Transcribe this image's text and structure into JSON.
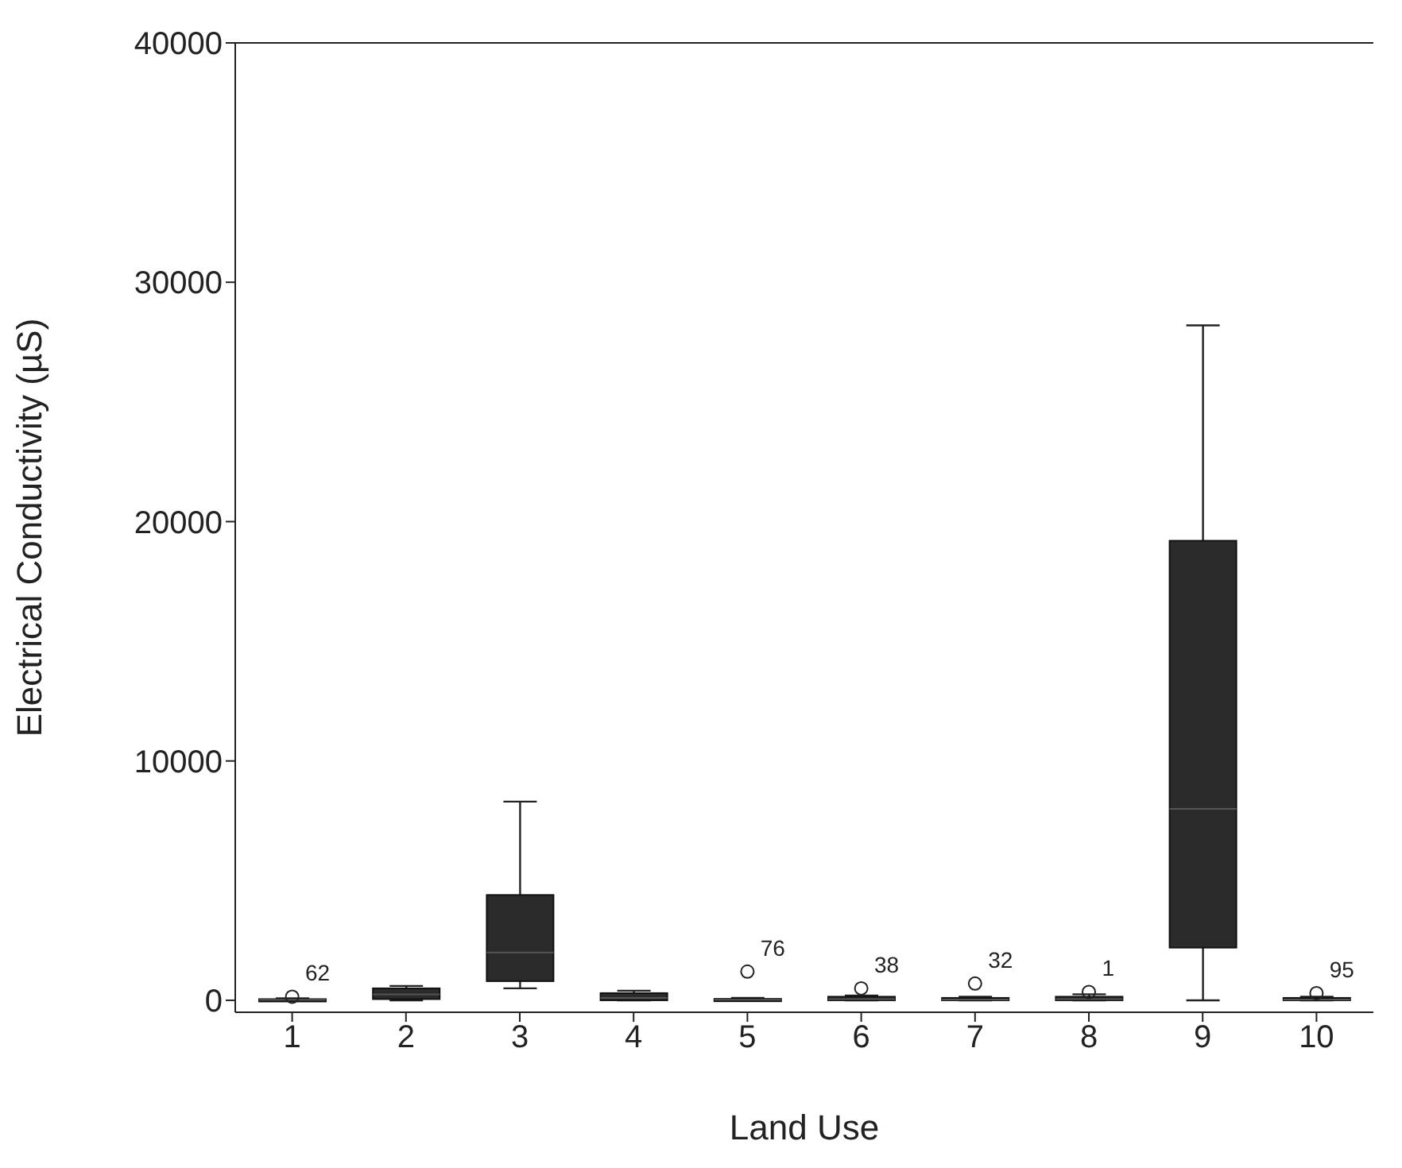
{
  "chart_data": {
    "type": "box",
    "xlabel": "Land Use",
    "ylabel": "Electrical Conductivity (µS)",
    "categories": [
      "1",
      "2",
      "3",
      "4",
      "5",
      "6",
      "7",
      "8",
      "9",
      "10"
    ],
    "ylim": [
      -500,
      40000
    ],
    "yticks": [
      0,
      10000,
      20000,
      30000,
      40000
    ],
    "color": "#2b2b2b",
    "boxes": [
      {
        "low": 0,
        "q1": 0,
        "median": 20,
        "q3": 50,
        "high": 80
      },
      {
        "low": 0,
        "q1": 50,
        "median": 250,
        "q3": 500,
        "high": 600
      },
      {
        "low": 500,
        "q1": 800,
        "median": 2000,
        "q3": 4400,
        "high": 8300
      },
      {
        "low": 0,
        "q1": 0,
        "median": 100,
        "q3": 300,
        "high": 400
      },
      {
        "low": 0,
        "q1": 0,
        "median": 20,
        "q3": 60,
        "high": 100
      },
      {
        "low": 0,
        "q1": 0,
        "median": 50,
        "q3": 150,
        "high": 200
      },
      {
        "low": 0,
        "q1": 0,
        "median": 30,
        "q3": 100,
        "high": 150
      },
      {
        "low": 0,
        "q1": 0,
        "median": 50,
        "q3": 150,
        "high": 250
      },
      {
        "low": 0,
        "q1": 2200,
        "median": 8000,
        "q3": 19200,
        "high": 28200
      },
      {
        "low": 0,
        "q1": 0,
        "median": 30,
        "q3": 100,
        "high": 150
      }
    ],
    "series": [
      {
        "type": "scatter",
        "x": [
          "1",
          "5",
          "6",
          "7",
          "8",
          "10"
        ],
        "values": [
          150,
          1200,
          500,
          700,
          350,
          300
        ]
      }
    ],
    "annotations": [
      {
        "text": "62",
        "x": "1",
        "y": 150
      },
      {
        "text": "76",
        "x": "5",
        "y": 1200
      },
      {
        "text": "38",
        "x": "6",
        "y": 500
      },
      {
        "text": "32",
        "x": "7",
        "y": 700
      },
      {
        "text": "1",
        "x": "8",
        "y": 350
      },
      {
        "text": "95",
        "x": "10",
        "y": 300
      }
    ]
  }
}
